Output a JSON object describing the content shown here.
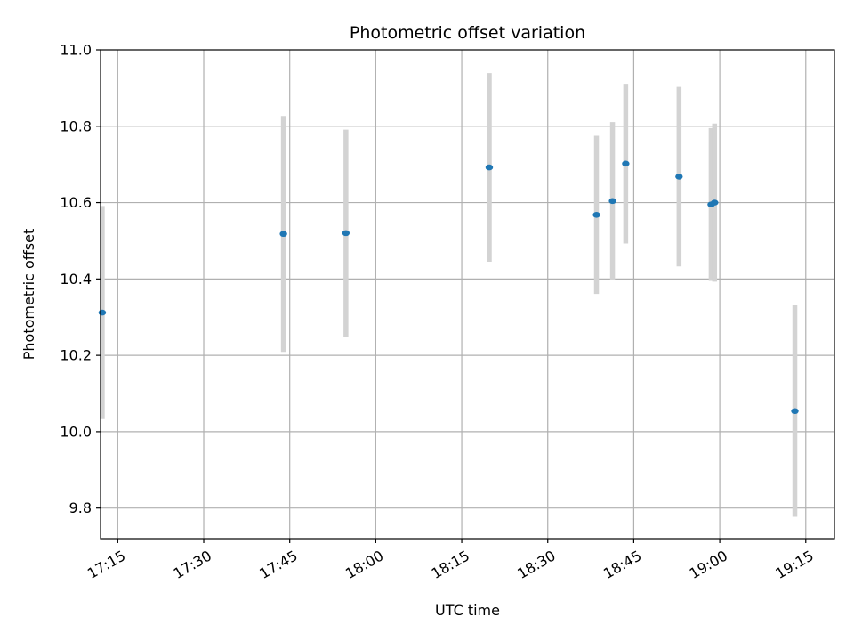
{
  "chart_data": {
    "type": "scatter",
    "title": "Photometric offset variation",
    "xlabel": "UTC time",
    "ylabel": "Photometric offset",
    "x_axis_type": "time",
    "xlim": [
      "17:12",
      "19:20"
    ],
    "ylim": [
      9.72,
      11.0
    ],
    "x_ticks": [
      "17:15",
      "17:30",
      "17:45",
      "18:00",
      "18:15",
      "18:30",
      "18:45",
      "19:00",
      "19:15"
    ],
    "y_ticks": [
      9.8,
      10.0,
      10.2,
      10.4,
      10.6,
      10.8,
      11.0
    ],
    "y_tick_labels": [
      "9.8",
      "10.0",
      "10.2",
      "10.4",
      "10.6",
      "10.8",
      "11.0"
    ],
    "grid": true,
    "colors": {
      "points": "#1f77b4",
      "errorbars": "#d3d3d3",
      "grid": "#b0b0b0"
    },
    "series": [
      {
        "points": [
          {
            "x": "17:12:18",
            "y": 10.312,
            "err": 0.279
          },
          {
            "x": "17:43:54",
            "y": 10.518,
            "err": 0.309
          },
          {
            "x": "17:54:48",
            "y": 10.52,
            "err": 0.271
          },
          {
            "x": "18:19:48",
            "y": 10.692,
            "err": 0.247
          },
          {
            "x": "18:38:30",
            "y": 10.568,
            "err": 0.207
          },
          {
            "x": "18:41:18",
            "y": 10.604,
            "err": 0.207
          },
          {
            "x": "18:43:36",
            "y": 10.702,
            "err": 0.209
          },
          {
            "x": "18:52:54",
            "y": 10.668,
            "err": 0.235
          },
          {
            "x": "18:58:30",
            "y": 10.595,
            "err": 0.2
          },
          {
            "x": "18:59:06",
            "y": 10.6,
            "err": 0.207
          },
          {
            "x": "19:13:06",
            "y": 10.054,
            "err": 0.277
          }
        ]
      }
    ]
  }
}
